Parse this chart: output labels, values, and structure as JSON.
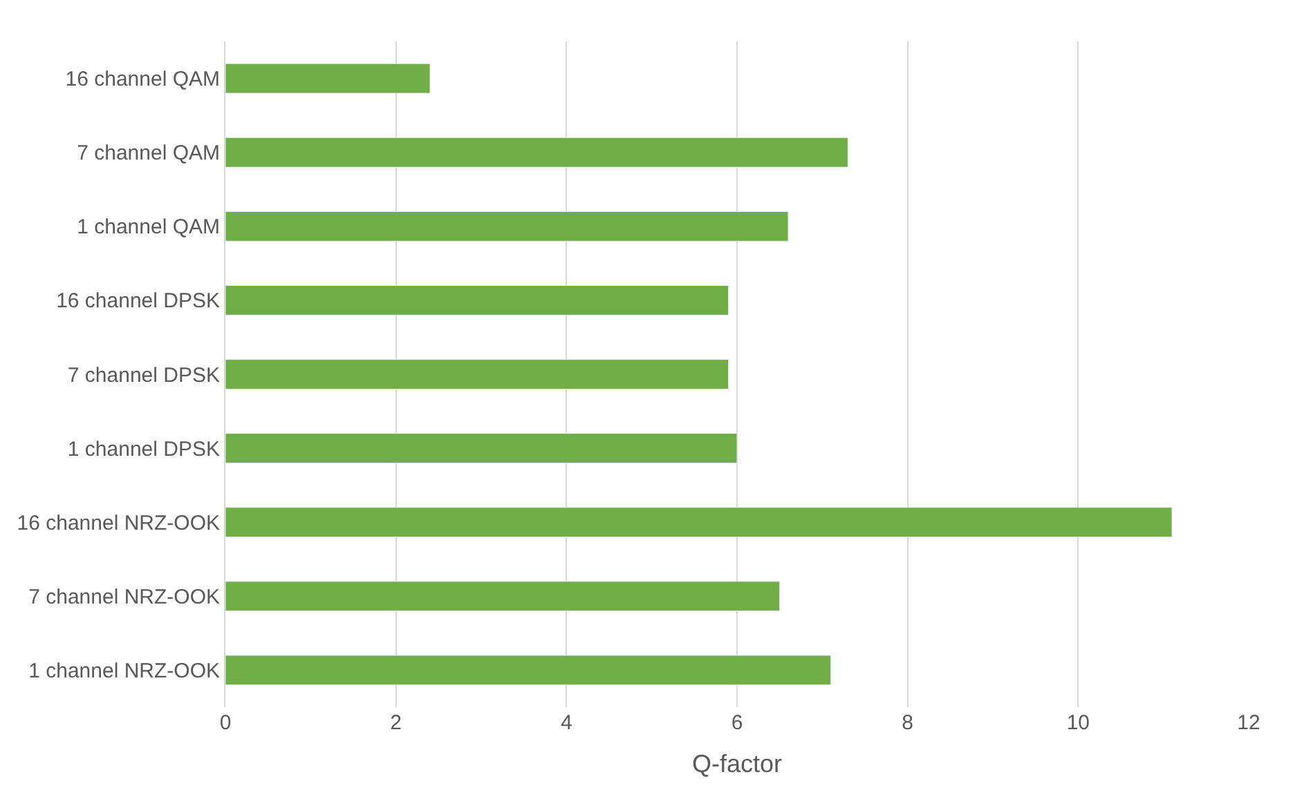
{
  "chart_data": {
    "type": "bar",
    "orientation": "horizontal",
    "xlabel": "Q-factor",
    "categories": [
      "16 channel QAM",
      "7 channel QAM",
      "1 channel QAM",
      "16 channel DPSK",
      "7 channel DPSK",
      "1 channel DPSK",
      "16 channel NRZ-OOK",
      "7 channel NRZ-OOK",
      "1 channel NRZ-OOK"
    ],
    "values": [
      2.4,
      7.3,
      6.6,
      5.9,
      5.9,
      6.0,
      11.1,
      6.5,
      7.1
    ],
    "color": "#70ad47",
    "xlim": [
      0,
      12
    ],
    "xticks": [
      0,
      2,
      4,
      6,
      8,
      10,
      12
    ],
    "grid": "x"
  }
}
